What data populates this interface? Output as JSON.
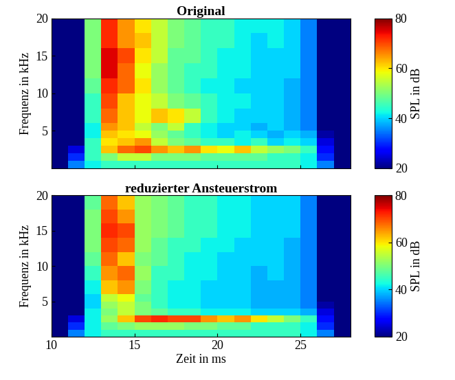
{
  "chart_data": [
    {
      "type": "heatmap",
      "title": "Original",
      "ylabel": "Frequenz in kHz",
      "tick_labels": "y",
      "color": "jet",
      "xlim": [
        10,
        28
      ],
      "ylim": [
        0,
        20
      ],
      "xticks": [
        10,
        15,
        20,
        25
      ],
      "yticks": [
        5,
        10,
        15,
        20
      ],
      "x_edges": [
        10,
        11,
        12,
        13,
        14,
        15,
        16,
        17,
        18,
        19,
        20,
        21,
        22,
        23,
        24,
        25,
        26,
        27,
        28
      ],
      "y_edges": [
        0,
        1,
        2,
        3,
        4,
        5,
        6,
        8,
        10,
        12,
        14,
        16,
        18,
        20
      ],
      "cells": [
        [
          20,
          35,
          42,
          45,
          45,
          45,
          45,
          45,
          45,
          45,
          45,
          45,
          45,
          45,
          45,
          42,
          35,
          20
        ],
        [
          20,
          30,
          45,
          50,
          55,
          55,
          50,
          50,
          50,
          48,
          48,
          48,
          48,
          45,
          45,
          42,
          30,
          20
        ],
        [
          20,
          25,
          45,
          62,
          68,
          70,
          65,
          62,
          65,
          60,
          58,
          62,
          55,
          52,
          50,
          45,
          28,
          20
        ],
        [
          20,
          20,
          45,
          60,
          62,
          65,
          55,
          50,
          48,
          45,
          45,
          42,
          45,
          40,
          42,
          40,
          25,
          20
        ],
        [
          20,
          20,
          42,
          62,
          60,
          58,
          52,
          48,
          45,
          42,
          40,
          42,
          40,
          38,
          40,
          38,
          22,
          20
        ],
        [
          20,
          20,
          42,
          65,
          62,
          55,
          50,
          55,
          45,
          42,
          40,
          40,
          38,
          40,
          38,
          35,
          20,
          20
        ],
        [
          20,
          20,
          45,
          68,
          62,
          58,
          62,
          60,
          55,
          45,
          42,
          40,
          40,
          40,
          38,
          35,
          20,
          20
        ],
        [
          20,
          20,
          45,
          70,
          62,
          58,
          55,
          50,
          48,
          45,
          42,
          42,
          40,
          40,
          38,
          35,
          20,
          20
        ],
        [
          20,
          20,
          48,
          72,
          68,
          60,
          52,
          48,
          45,
          42,
          42,
          40,
          40,
          40,
          38,
          35,
          20,
          20
        ],
        [
          20,
          20,
          50,
          75,
          68,
          58,
          52,
          48,
          45,
          45,
          42,
          42,
          40,
          40,
          40,
          35,
          20,
          20
        ],
        [
          20,
          20,
          50,
          75,
          70,
          60,
          55,
          48,
          48,
          45,
          42,
          42,
          40,
          40,
          40,
          35,
          20,
          20
        ],
        [
          20,
          20,
          50,
          72,
          65,
          62,
          55,
          50,
          48,
          45,
          45,
          42,
          40,
          42,
          40,
          35,
          20,
          20
        ],
        [
          20,
          20,
          50,
          72,
          65,
          60,
          55,
          50,
          48,
          45,
          45,
          42,
          42,
          42,
          40,
          35,
          20,
          20
        ]
      ],
      "colorbar": {
        "label": "SPL in dB",
        "lim": [
          20,
          80
        ],
        "ticks": [
          20,
          40,
          60,
          80
        ]
      }
    },
    {
      "type": "heatmap",
      "title": "reduzierter Ansteuerstrom",
      "xlabel": "Zeit in ms",
      "ylabel": "Frequenz in kHz",
      "color": "jet",
      "xlim": [
        10,
        28
      ],
      "ylim": [
        0,
        20
      ],
      "xticks": [
        10,
        15,
        20,
        25
      ],
      "yticks": [
        5,
        10,
        15,
        20
      ],
      "x_edges": [
        10,
        11,
        12,
        13,
        14,
        15,
        16,
        17,
        18,
        19,
        20,
        21,
        22,
        23,
        24,
        25,
        26,
        27,
        28
      ],
      "y_edges": [
        0,
        1,
        2,
        3,
        4,
        5,
        6,
        8,
        10,
        12,
        14,
        16,
        18,
        20
      ],
      "cells": [
        [
          20,
          35,
          42,
          45,
          45,
          45,
          45,
          45,
          45,
          45,
          45,
          45,
          45,
          45,
          45,
          42,
          35,
          20
        ],
        [
          20,
          30,
          42,
          48,
          50,
          52,
          52,
          52,
          50,
          50,
          48,
          48,
          45,
          45,
          45,
          42,
          30,
          20
        ],
        [
          20,
          25,
          42,
          52,
          62,
          70,
          72,
          70,
          70,
          65,
          62,
          65,
          60,
          55,
          50,
          45,
          28,
          20
        ],
        [
          20,
          20,
          42,
          50,
          55,
          50,
          48,
          45,
          45,
          42,
          42,
          42,
          40,
          40,
          40,
          38,
          25,
          20
        ],
        [
          20,
          20,
          40,
          52,
          55,
          50,
          45,
          42,
          42,
          40,
          40,
          40,
          38,
          38,
          38,
          35,
          22,
          20
        ],
        [
          20,
          20,
          40,
          55,
          58,
          48,
          45,
          42,
          42,
          40,
          40,
          40,
          38,
          38,
          38,
          35,
          20,
          20
        ],
        [
          20,
          20,
          42,
          62,
          65,
          50,
          45,
          42,
          42,
          40,
          40,
          40,
          38,
          38,
          38,
          35,
          20,
          20
        ],
        [
          20,
          20,
          45,
          65,
          68,
          52,
          45,
          45,
          42,
          42,
          40,
          40,
          38,
          40,
          38,
          35,
          20,
          20
        ],
        [
          20,
          20,
          48,
          68,
          62,
          50,
          48,
          45,
          42,
          42,
          40,
          40,
          40,
          40,
          38,
          35,
          20,
          20
        ],
        [
          20,
          20,
          50,
          70,
          68,
          52,
          48,
          45,
          45,
          42,
          42,
          40,
          40,
          40,
          38,
          35,
          20,
          20
        ],
        [
          20,
          20,
          50,
          72,
          70,
          52,
          50,
          48,
          45,
          45,
          42,
          42,
          40,
          40,
          40,
          35,
          20,
          20
        ],
        [
          20,
          20,
          50,
          70,
          65,
          52,
          50,
          48,
          45,
          45,
          42,
          42,
          40,
          40,
          40,
          35,
          20,
          20
        ],
        [
          20,
          20,
          48,
          68,
          62,
          52,
          50,
          48,
          45,
          45,
          42,
          42,
          40,
          40,
          40,
          35,
          20,
          20
        ]
      ],
      "colorbar": {
        "label": "SPL in dB",
        "lim": [
          20,
          80
        ],
        "ticks": [
          20,
          40,
          60,
          80
        ]
      }
    }
  ]
}
